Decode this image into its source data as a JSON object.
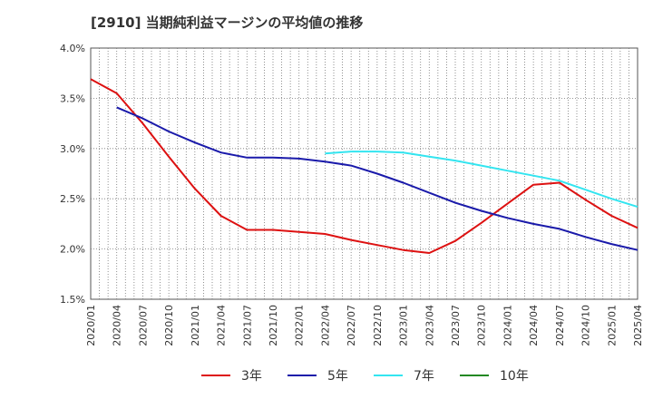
{
  "chart_data": {
    "type": "line",
    "title": "[2910]  当期純利益マージンの平均値の推移",
    "ylim": [
      1.5,
      4.0
    ],
    "y_ticks": [
      "1.5%",
      "2.0%",
      "2.5%",
      "3.0%",
      "3.5%",
      "4.0%"
    ],
    "x_ticks": [
      "2020/01",
      "2020/04",
      "2020/07",
      "2020/10",
      "2021/01",
      "2021/04",
      "2021/07",
      "2021/10",
      "2022/01",
      "2022/04",
      "2022/07",
      "2022/10",
      "2023/01",
      "2023/04",
      "2023/07",
      "2023/10",
      "2024/01",
      "2024/04",
      "2024/07",
      "2024/10",
      "2025/01",
      "2025/04"
    ],
    "grid": true,
    "legend_position": "bottom",
    "series": [
      {
        "name": "3年",
        "color": "#dd1111",
        "points": [
          [
            "2020/01",
            3.69
          ],
          [
            "2020/04",
            3.55
          ],
          [
            "2020/07",
            3.25
          ],
          [
            "2020/10",
            2.92
          ],
          [
            "2021/01",
            2.6
          ],
          [
            "2021/04",
            2.33
          ],
          [
            "2021/07",
            2.19
          ],
          [
            "2021/10",
            2.19
          ],
          [
            "2022/01",
            2.17
          ],
          [
            "2022/04",
            2.15
          ],
          [
            "2022/07",
            2.09
          ],
          [
            "2022/10",
            2.04
          ],
          [
            "2023/01",
            1.99
          ],
          [
            "2023/04",
            1.96
          ],
          [
            "2023/07",
            2.08
          ],
          [
            "2023/10",
            2.26
          ],
          [
            "2024/01",
            2.45
          ],
          [
            "2024/04",
            2.64
          ],
          [
            "2024/07",
            2.66
          ],
          [
            "2024/10",
            2.49
          ],
          [
            "2025/01",
            2.33
          ],
          [
            "2025/04",
            2.21
          ]
        ]
      },
      {
        "name": "5年",
        "color": "#1a1aaa",
        "points": [
          [
            "2020/04",
            3.41
          ],
          [
            "2020/07",
            3.3
          ],
          [
            "2020/10",
            3.17
          ],
          [
            "2021/01",
            3.06
          ],
          [
            "2021/04",
            2.96
          ],
          [
            "2021/07",
            2.91
          ],
          [
            "2021/10",
            2.91
          ],
          [
            "2022/01",
            2.9
          ],
          [
            "2022/04",
            2.87
          ],
          [
            "2022/07",
            2.83
          ],
          [
            "2022/10",
            2.75
          ],
          [
            "2023/01",
            2.66
          ],
          [
            "2023/04",
            2.56
          ],
          [
            "2023/07",
            2.46
          ],
          [
            "2023/10",
            2.38
          ],
          [
            "2024/01",
            2.31
          ],
          [
            "2024/04",
            2.25
          ],
          [
            "2024/07",
            2.2
          ],
          [
            "2024/10",
            2.12
          ],
          [
            "2025/01",
            2.05
          ],
          [
            "2025/04",
            1.99
          ]
        ]
      },
      {
        "name": "7年",
        "color": "#33e5f0",
        "points": [
          [
            "2022/04",
            2.95
          ],
          [
            "2022/07",
            2.97
          ],
          [
            "2022/10",
            2.97
          ],
          [
            "2023/01",
            2.96
          ],
          [
            "2023/04",
            2.92
          ],
          [
            "2023/07",
            2.88
          ],
          [
            "2023/10",
            2.83
          ],
          [
            "2024/01",
            2.78
          ],
          [
            "2024/04",
            2.73
          ],
          [
            "2024/07",
            2.68
          ],
          [
            "2024/10",
            2.59
          ],
          [
            "2025/01",
            2.5
          ],
          [
            "2025/04",
            2.42
          ]
        ]
      },
      {
        "name": "10年",
        "color": "#228822",
        "points": []
      }
    ]
  }
}
